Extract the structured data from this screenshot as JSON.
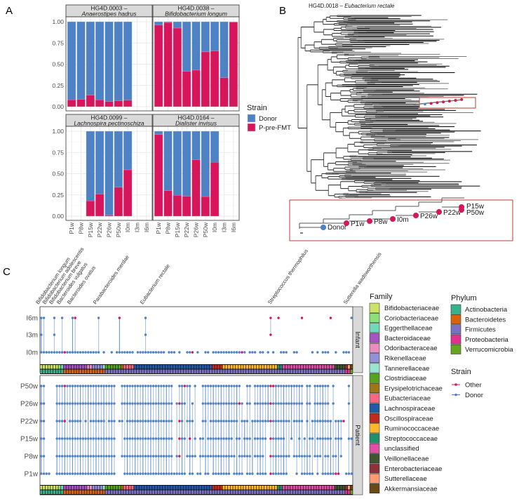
{
  "panel_labels": [
    "A",
    "B",
    "C"
  ],
  "chart_data": [
    {
      "type": "bar",
      "stacked": true,
      "categories": [
        "P1w",
        "P8w",
        "P15w",
        "P22w",
        "P26w",
        "P50w",
        "I0m",
        "I3m",
        "I6m"
      ],
      "ylim": [
        0,
        1
      ],
      "ytick_labels": [
        "0.00",
        "0.25",
        "0.50",
        "0.75",
        "1.00"
      ],
      "grid": true,
      "legend": {
        "title": "Strain",
        "placement": "right",
        "entries": [
          "Donor",
          "P-pre-FMT"
        ]
      },
      "colors": {
        "Donor": "#4f81c5",
        "P-pre-FMT": "#d6155a"
      },
      "facets": [
        {
          "id": "HG4D.0003 –",
          "species": "Anaerostipes hadrus",
          "P-pre-FMT": [
            0.08,
            0.085,
            0.135,
            0.08,
            0.06,
            0.07,
            0.075,
            null,
            null
          ],
          "Donor": [
            0.92,
            0.915,
            0.865,
            0.92,
            0.94,
            0.93,
            0.925,
            null,
            null
          ]
        },
        {
          "id": "HG4D.0038 –",
          "species": "Bifidobacterium longum",
          "P-pre-FMT": [
            0.96,
            0.99,
            0.925,
            0.415,
            0.43,
            0.645,
            0.655,
            0.34,
            0.995
          ],
          "Donor": [
            0.04,
            0.01,
            0.075,
            0.585,
            0.57,
            0.355,
            0.345,
            0.66,
            0.005
          ]
        },
        {
          "id": "HG4D.0099 –",
          "species": "Lachnospira pectinoschiza",
          "P-pre-FMT": [
            null,
            null,
            0.18,
            0.26,
            0.01,
            0.34,
            0.545,
            null,
            null
          ],
          "Donor": [
            null,
            null,
            0.82,
            0.74,
            0.99,
            0.66,
            0.455,
            null,
            null
          ]
        },
        {
          "id": "HG4D.0164 –",
          "species": "Dialister invisus",
          "P-pre-FMT": [
            0.96,
            0.3,
            0.245,
            0.235,
            0.665,
            0.23,
            0.635,
            null,
            null
          ],
          "Donor": [
            0.04,
            0.7,
            0.755,
            0.765,
            0.335,
            0.77,
            0.365,
            null,
            null
          ]
        }
      ]
    },
    {
      "type": "tree",
      "title_id": "HG4D.0018 –",
      "title_species": "Eubacterium rectale",
      "inset_labels": [
        "Donor",
        "P1w",
        "P8w",
        "I0m",
        "P26w",
        "P22w",
        "P15w",
        "P50w"
      ],
      "inset_colors": {
        "Donor": "#4f81c5",
        "Other": "#d6155a"
      }
    },
    {
      "type": "scatter",
      "facets": [
        {
          "label": "Infant",
          "rows": [
            {
              "label": "I6m",
              "cells": [
                "DD...D..D.",
                "..DO......",
                "..D.......",
                "O.........",
                "D.........",
                "..........",
                "..........",
                "..........",
                "........O.",
                ".O........",
                "O.........",
                ".O.......D",
                "..........",
                "..........",
                "......D.D."
              ]
            },
            {
              "label": "I3m",
              "cells": [
                "D....D....",
                "..........",
                "..........",
                "..........",
                "D.........",
                "..........",
                "..........",
                "..........",
                "........O.",
                "..........",
                "..........",
                ".........."
              ]
            },
            {
              "label": "I0m",
              "cells": [
                "DDDDDDDDDO",
                "DDDDDDDDDD",
                "DDD.D..D.D",
                "DDDDDD.DDD",
                "DDDDDDDD.D",
                "DD.D..DDO.",
                "D..DD.DDDD",
                "DDDDDDDOD.",
                "DDD.DD.D.D",
                "..DDD..DD.",
                "....D.D.DD",
                "D..D..DDD."
              ]
            }
          ]
        },
        {
          "label": "Patient",
          "rows": [
            {
              "label": "P50w",
              "cells": [
                "DD....DDDO",
                "DDDDDDDDDD",
                "DDDDDDDDD.",
                ".DDDDDDDDD",
                "DDDDDDDDDD",
                "D..DDODD.D",
                "..DDDDDDDD",
                "DDDDDDD..D",
                "D.DDDDDDOO",
                "DDDDDDDDDD",
                "D.DD.DDDDD",
                "D.D.....D."
              ]
            },
            {
              "label": "P26w",
              "cells": [
                "DD....DDDD",
                "DDDDDDDDDD",
                "DDDDDDDDD.",
                ".DDDDDDDDD",
                "DDDDDDDDDD",
                "D.DODD..D.",
                "..DDDDDDDD",
                "DDDDDDOD.D",
                "D.DDDDDDOD",
                "DDDDDDDDDD",
                "D.DD.DDDDD",
                "D.D.....D."
              ]
            },
            {
              "label": "P22w",
              "cells": [
                "DD....DDDO",
                ".DDDDD.D.D",
                "DDDDD.DDD.",
                "DD.DDDDDDD",
                "DDDDDDDDDD",
                "D..OD.DDD.",
                "..DD.DDDDD",
                "DDDDDD.DDD",
                ".DDDDDDDOD",
                "DDDDDD.DDD",
                "D.D.DDDDDD",
                "DD.DDDO..."
              ]
            },
            {
              "label": "P15w",
              "cells": [
                "DD....DDDD",
                "DDDDDDDDDD",
                "DDDDDDDDD.",
                "..DDDDDDDD",
                "DDDDDDDDDD",
                "D..ODD.O.D",
                ".DD.DDDDDD",
                "DDDD.DD.DD",
                "D.DDDDD.OD",
                "DDDD..D..D",
                ".D.DD.DDDD",
                "DD.DDD..DD"
              ]
            },
            {
              "label": "P8w",
              "cells": [
                "DD....DDDD",
                "DDDDDDDDDD",
                "DDDDDDDDD.",
                ".DDDDDDDDD",
                "DDDDDDDDDD",
                "D.DO..DDDD",
                ".DDDDDDDDD",
                "DDDDD.DDDD",
                "D.DDDD..OD",
                "DDDDDD.DDD",
                "DDDD.DDD.D",
                "D.DD.D...."
              ]
            },
            {
              "label": "P1w",
              "cells": [
                "DDDD..DDDD",
                "DDDDDDDDDD",
                "DDDDDDDDD.",
                "..DDDDDDDD",
                "DDDDDDDDDD",
                "DDDDDD.DD.",
                "DD.DD.DDDD",
                "DDD.DDDD.D",
                "DD.DDDD.OD",
                "DDDDD...D.",
                "DDDDD.D.DD",
                "DDDOO..DDD"
              ]
            }
          ]
        }
      ],
      "species_labels": [
        {
          "col": 0,
          "text": "Bifidobacterium longum"
        },
        {
          "col": 1,
          "text": "Bifidobacterium adolescentis"
        },
        {
          "col": 5,
          "text": "Bifidobacterium breve"
        },
        {
          "col": 8,
          "text": "Bacteroides vulgatus"
        },
        {
          "col": 12,
          "text": "Bacteroides ovatus"
        },
        {
          "col": 22,
          "text": "Parabacteroides merdae"
        },
        {
          "col": 40,
          "text": "Eubacterium rectale"
        },
        {
          "col": 89,
          "text": "Streptococcus thermophilus"
        },
        {
          "col": 118,
          "text": "Sutterella wadsworthensis"
        }
      ],
      "family_legend_title": "Family",
      "families": [
        {
          "name": "Bifidobacteriaceae",
          "color": "#cde26a",
          "phylum": 0,
          "count": 7
        },
        {
          "name": "Coriobacteriaceae",
          "color": "#8ddf7a",
          "phylum": 0,
          "count": 1
        },
        {
          "name": "Eggerthellaceae",
          "color": "#6fd9b9",
          "phylum": 0,
          "count": 1
        },
        {
          "name": "Bacteroidaceae",
          "color": "#a653c4",
          "phylum": 1,
          "count": 9
        },
        {
          "name": "Odoribacteraceae",
          "color": "#ea8cc0",
          "phylum": 1,
          "count": 2
        },
        {
          "name": "Rikenellaceae",
          "color": "#9290d6",
          "phylum": 1,
          "count": 4
        },
        {
          "name": "Tannerellaceae",
          "color": "#99e5d4",
          "phylum": 1,
          "count": 1
        },
        {
          "name": "Clostridiaceae",
          "color": "#55a41d",
          "phylum": 2,
          "count": 6
        },
        {
          "name": "Erysipelotrichaceae",
          "color": "#9d7717",
          "phylum": 2,
          "count": 1
        },
        {
          "name": "Eubacteriaceae",
          "color": "#f5687f",
          "phylum": 2,
          "count": 4
        },
        {
          "name": "Lachnospiraceae",
          "color": "#1f59a8",
          "phylum": 2,
          "count": 30
        },
        {
          "name": "Oscillospiraceae",
          "color": "#c22a21",
          "phylum": 2,
          "count": 4
        },
        {
          "name": "Ruminococcaceae",
          "color": "#fcb92b",
          "phylum": 2,
          "count": 21
        },
        {
          "name": "Streptococcaceae",
          "color": "#23906a",
          "phylum": 2,
          "count": 2
        },
        {
          "name": "unclassified",
          "color": "#df4fa5",
          "phylum": 2,
          "count": 20
        },
        {
          "name": "Veillonellaceae",
          "color": "#3d5530",
          "phylum": 2,
          "count": 4
        },
        {
          "name": "Enterobacteriaceae",
          "color": "#8e3238",
          "phylum": 3,
          "count": 1
        },
        {
          "name": "Sutterellaceae",
          "color": "#fd9b72",
          "phylum": 3,
          "count": 1
        },
        {
          "name": "Akkermansiaceae",
          "color": "#694a17",
          "phylum": 4,
          "count": 1
        }
      ],
      "phylum_legend_title": "Phylum",
      "phyla": [
        {
          "name": "Actinobacteria",
          "color": "#36b38b"
        },
        {
          "name": "Bacteroidetes",
          "color": "#d9620a"
        },
        {
          "name": "Firmicutes",
          "color": "#7b70c3"
        },
        {
          "name": "Proteobacteria",
          "color": "#e0328a"
        },
        {
          "name": "Verrucomicrobia",
          "color": "#66a61e"
        }
      ],
      "strain_legend": {
        "title": "Strain",
        "entries": [
          {
            "name": "Other",
            "color": "#d6155a"
          },
          {
            "name": "Donor",
            "color": "#4f81c5"
          }
        ]
      }
    }
  ]
}
